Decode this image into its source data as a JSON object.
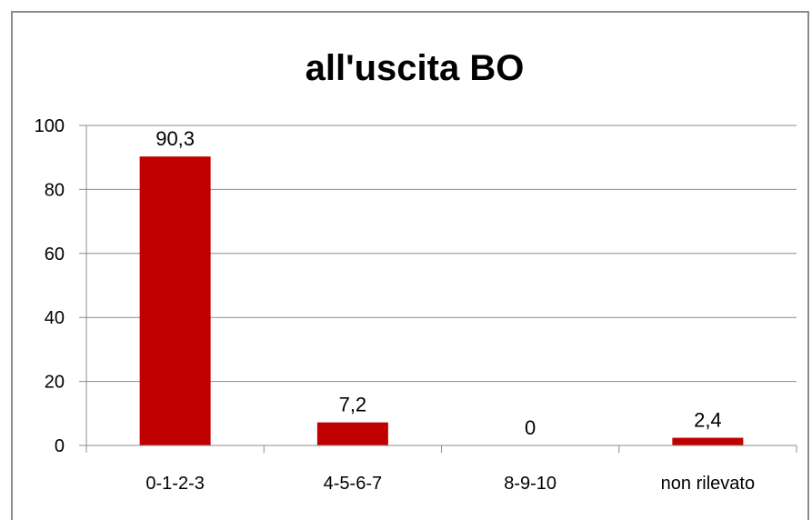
{
  "chart_data": {
    "type": "bar",
    "title": "all'uscita BO",
    "categories": [
      "0-1-2-3",
      "4-5-6-7",
      "8-9-10",
      "non rilevato"
    ],
    "values": [
      90.3,
      7.2,
      0,
      2.4
    ],
    "data_labels": [
      "90,3",
      "7,2",
      "0",
      "2,4"
    ],
    "y_ticks": [
      "0",
      "20",
      "40",
      "60",
      "80",
      "100"
    ],
    "ylim": [
      0,
      100
    ],
    "grid": true,
    "legend": "none",
    "bar_color": "#C00000",
    "gridline_color": "#8C8C8C"
  }
}
